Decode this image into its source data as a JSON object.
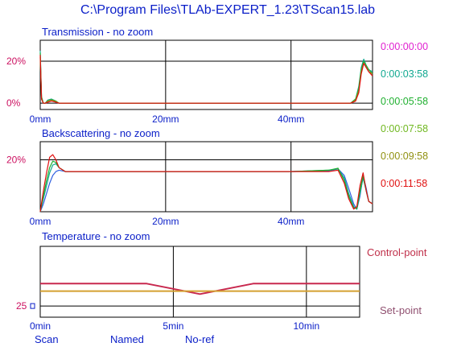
{
  "window": {
    "title": "C:\\Program Files\\TLAb-EXPERT_1.23\\TScan15.lab"
  },
  "colors": {
    "text_blue": "#0a1ec8",
    "tick_magenta": "#cc1060",
    "control_point": "#c0304a",
    "set_point": "#905070",
    "temp_setpoint": "#d4a030",
    "temp_control": "#c8284e"
  },
  "legend": {
    "items": [
      {
        "label": "0:00:00:00",
        "color": "#e020d0"
      },
      {
        "label": "0:00:03:58",
        "color": "#10a890"
      },
      {
        "label": "0:00:05:58",
        "color": "#20b030"
      },
      {
        "label": "0:00:07:58",
        "color": "#70b820"
      },
      {
        "label": "0:00:09:58",
        "color": "#909010"
      },
      {
        "label": "0:00:11:58",
        "color": "#e01010"
      }
    ]
  },
  "temperature_labels": {
    "control": "Control-point",
    "set": "Set-point"
  },
  "footer": {
    "scan": "Scan",
    "named": "Named",
    "noref": "No-ref"
  },
  "chart_data": [
    {
      "type": "line",
      "title": "Transmission - no zoom",
      "x_unit": "mm",
      "xlim": [
        0,
        53
      ],
      "x_ticks": [
        0,
        20,
        40
      ],
      "x_tick_labels": [
        "0mm",
        "20mm",
        "40mm"
      ],
      "ylim": [
        -3,
        30
      ],
      "y_ticks": [
        0,
        20
      ],
      "y_tick_labels": [
        "0%",
        "20%"
      ],
      "grid": true,
      "series": [
        {
          "color": "#10a890",
          "x": [
            0,
            0.2,
            0.5,
            0.8,
            1.2,
            1.8,
            2.5,
            3,
            5,
            20,
            40,
            49.5,
            50.3,
            50.8,
            51.2,
            51.6,
            52,
            52.4,
            53
          ],
          "y": [
            25,
            3,
            0,
            0,
            1.5,
            2,
            1,
            0,
            0,
            0,
            0,
            0,
            2,
            8,
            17,
            21,
            18,
            16,
            15
          ]
        },
        {
          "color": "#20b030",
          "x": [
            0,
            0.2,
            0.5,
            0.8,
            1.2,
            1.8,
            2.5,
            3,
            5,
            20,
            40,
            49.5,
            50.3,
            50.8,
            51.2,
            51.6,
            52,
            52.4,
            53
          ],
          "y": [
            24,
            3,
            0,
            0,
            1.2,
            1.7,
            1,
            0,
            0,
            0,
            0,
            0,
            2,
            7,
            16,
            20,
            18,
            16,
            14
          ]
        },
        {
          "color": "#909010",
          "x": [
            0,
            0.2,
            0.5,
            0.8,
            1.2,
            1.8,
            2.5,
            3,
            5,
            20,
            40,
            49.5,
            50.3,
            50.8,
            51.2,
            51.6,
            52,
            52.4,
            53
          ],
          "y": [
            22,
            2,
            0,
            0,
            1,
            1.5,
            0.8,
            0,
            0,
            0,
            0,
            0,
            1.5,
            6,
            15,
            19,
            17,
            15,
            14
          ]
        },
        {
          "color": "#e01010",
          "x": [
            0,
            0.2,
            0.5,
            0.8,
            1.2,
            1.8,
            2.5,
            3,
            5,
            20,
            40,
            49.5,
            50.3,
            50.8,
            51.2,
            51.6,
            52,
            52.4,
            53
          ],
          "y": [
            23,
            2,
            0,
            0,
            0.5,
            1,
            0.5,
            0,
            0,
            0,
            0,
            0,
            1,
            5,
            14,
            19,
            17,
            15,
            13
          ]
        }
      ]
    },
    {
      "type": "line",
      "title": "Backscattering - no zoom",
      "x_unit": "mm",
      "xlim": [
        0,
        53
      ],
      "x_ticks": [
        0,
        20,
        40
      ],
      "x_tick_labels": [
        "0mm",
        "20mm",
        "40mm"
      ],
      "ylim": [
        0,
        27
      ],
      "y_ticks": [
        20
      ],
      "y_tick_labels": [
        "20%"
      ],
      "grid": true,
      "series": [
        {
          "color": "#3060e0",
          "x": [
            0,
            0.5,
            1,
            1.5,
            2,
            2.5,
            3,
            4,
            6,
            20,
            40,
            46,
            47.5,
            48.5,
            49.2,
            50,
            50.5,
            51,
            51.5,
            52,
            52.4,
            53
          ],
          "y": [
            0,
            3,
            7,
            11,
            14,
            15.5,
            16,
            15.5,
            15.5,
            15.5,
            15.5,
            15.8,
            16.5,
            14,
            9,
            3,
            1,
            6,
            14,
            9,
            4,
            3
          ]
        },
        {
          "color": "#10a890",
          "x": [
            0,
            0.5,
            1,
            1.5,
            2,
            2.5,
            3,
            4,
            6,
            20,
            40,
            46,
            47.5,
            48.5,
            49.2,
            50,
            50.5,
            51,
            51.5,
            52,
            52.4,
            53
          ],
          "y": [
            0,
            5,
            10,
            15,
            18,
            18.5,
            17,
            15.5,
            15.5,
            15.5,
            15.5,
            16,
            16.5,
            13,
            7,
            2,
            1,
            7,
            13,
            8,
            4,
            3
          ]
        },
        {
          "color": "#20b030",
          "x": [
            0,
            0.5,
            1,
            1.5,
            2,
            2.5,
            3,
            4,
            6,
            20,
            40,
            46,
            47.5,
            48.5,
            49.2,
            50,
            50.5,
            51,
            51.5,
            52,
            52.4,
            53
          ],
          "y": [
            0,
            6,
            12,
            17,
            19.5,
            19,
            17,
            15.5,
            15.5,
            15.5,
            15.5,
            16,
            16.8,
            12,
            6,
            1.5,
            1.2,
            8,
            14,
            8,
            4,
            3
          ]
        },
        {
          "color": "#e01010",
          "x": [
            0,
            0.5,
            1,
            1.5,
            2,
            2.5,
            3,
            4,
            6,
            20,
            40,
            46,
            47.5,
            48.5,
            49.2,
            50,
            50.5,
            51,
            51.5,
            52,
            52.4,
            53
          ],
          "y": [
            0,
            8,
            15,
            21,
            22,
            20,
            17,
            15.5,
            15.5,
            15.5,
            15.5,
            15.5,
            16,
            11,
            5,
            1,
            2,
            10,
            15,
            8,
            4,
            3
          ]
        }
      ]
    },
    {
      "type": "line",
      "title": "Temperature - no zoom",
      "x_unit": "min",
      "xlim": [
        0,
        12
      ],
      "x_ticks": [
        0,
        5,
        10
      ],
      "x_tick_labels": [
        "0min",
        "5min",
        "10min"
      ],
      "ylim": [
        23.5,
        33
      ],
      "y_ticks": [
        25
      ],
      "y_tick_labels": [
        "25"
      ],
      "grid": true,
      "series": [
        {
          "name": "Control-point",
          "color": "#c8284e",
          "x": [
            0,
            4,
            6,
            8,
            12
          ],
          "y": [
            28,
            28,
            26.6,
            28,
            28
          ]
        },
        {
          "name": "Set-point",
          "color": "#d4a030",
          "x": [
            0,
            12
          ],
          "y": [
            27,
            27
          ]
        }
      ]
    }
  ]
}
